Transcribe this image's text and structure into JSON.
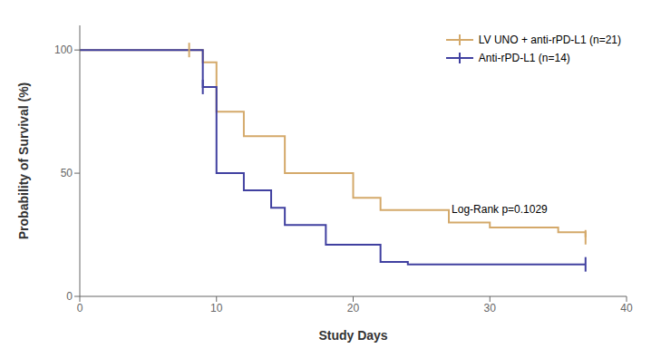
{
  "chart_data": {
    "type": "step",
    "xlabel": "Study Days",
    "ylabel": "Probability of Survival (%)",
    "xlim": [
      0,
      40
    ],
    "ylim": [
      0,
      110
    ],
    "xticks": [
      0,
      10,
      20,
      30,
      40
    ],
    "yticks": [
      0,
      50,
      100
    ],
    "grid": false,
    "legend": "upper right",
    "annotation": "Log-Rank p=0.1029",
    "series": [
      {
        "name": "LV UNO + anti-rPD-L1 (n=21)",
        "color": "#D4A96A",
        "x": [
          0,
          8,
          9,
          10,
          12,
          15,
          20,
          22,
          27,
          30,
          35,
          37
        ],
        "values": [
          100,
          100,
          95,
          75,
          65,
          50,
          40,
          35,
          30,
          28,
          26,
          24
        ],
        "censor_x": [
          8,
          37
        ],
        "censor_y": [
          100,
          24
        ]
      },
      {
        "name": "Anti-rPD-L1 (n=14)",
        "color": "#4040A0",
        "x": [
          0,
          9,
          10,
          12,
          14,
          15,
          18,
          22,
          24,
          37
        ],
        "values": [
          100,
          85,
          50,
          43,
          36,
          29,
          21,
          14,
          13,
          13
        ],
        "censor_x": [
          9,
          37
        ],
        "censor_y": [
          85,
          13
        ]
      }
    ]
  }
}
